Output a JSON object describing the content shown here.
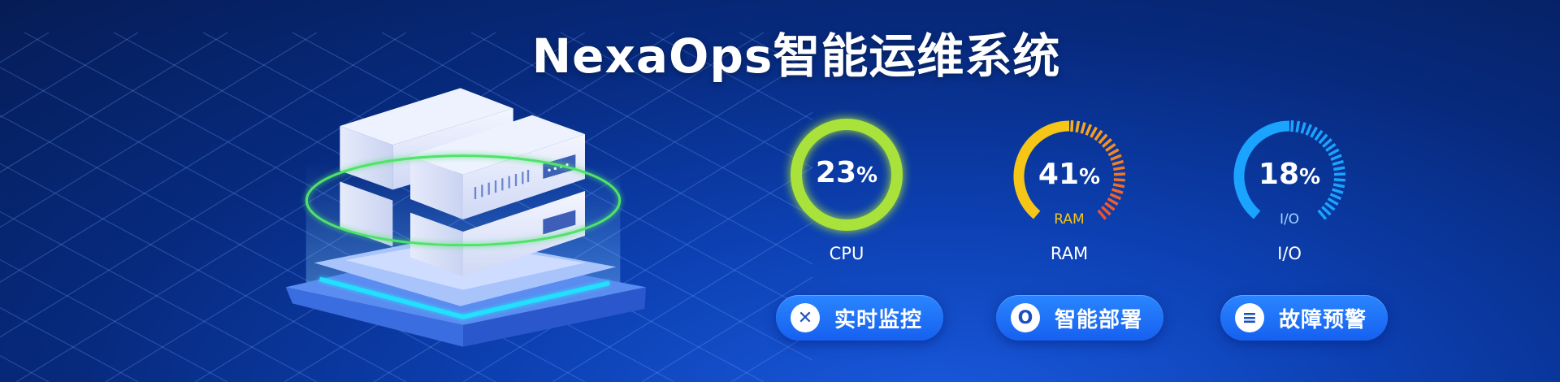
{
  "header": {
    "title": "NexaOps智能运维系统"
  },
  "metrics": [
    {
      "id": "cpu",
      "value": "23",
      "unit": "%",
      "label": "CPU",
      "inner_label": "",
      "percent": 23,
      "color": "#a8e23a"
    },
    {
      "id": "ram",
      "value": "41",
      "unit": "%",
      "label": "RAM",
      "inner_label": "RAM",
      "percent": 41,
      "color": "#f5c518",
      "color_end": "#f0522a"
    },
    {
      "id": "io",
      "value": "18",
      "unit": "%",
      "label": "I/O",
      "inner_label": "I/O",
      "percent": 18,
      "color": "#1aa3ff"
    }
  ],
  "buttons": [
    {
      "label": "实时监控",
      "icon": "close-x-icon",
      "glyph": "✕"
    },
    {
      "label": "智能部署",
      "icon": "deploy-ring-icon",
      "glyph": "O"
    },
    {
      "label": "故障预警",
      "icon": "menu-lines-icon",
      "glyph": "≡"
    }
  ],
  "colors": {
    "background": "#072a7e",
    "button": "#1f72ff",
    "ring_green": "#4fe36a",
    "base_glow": "#22e0ff"
  }
}
